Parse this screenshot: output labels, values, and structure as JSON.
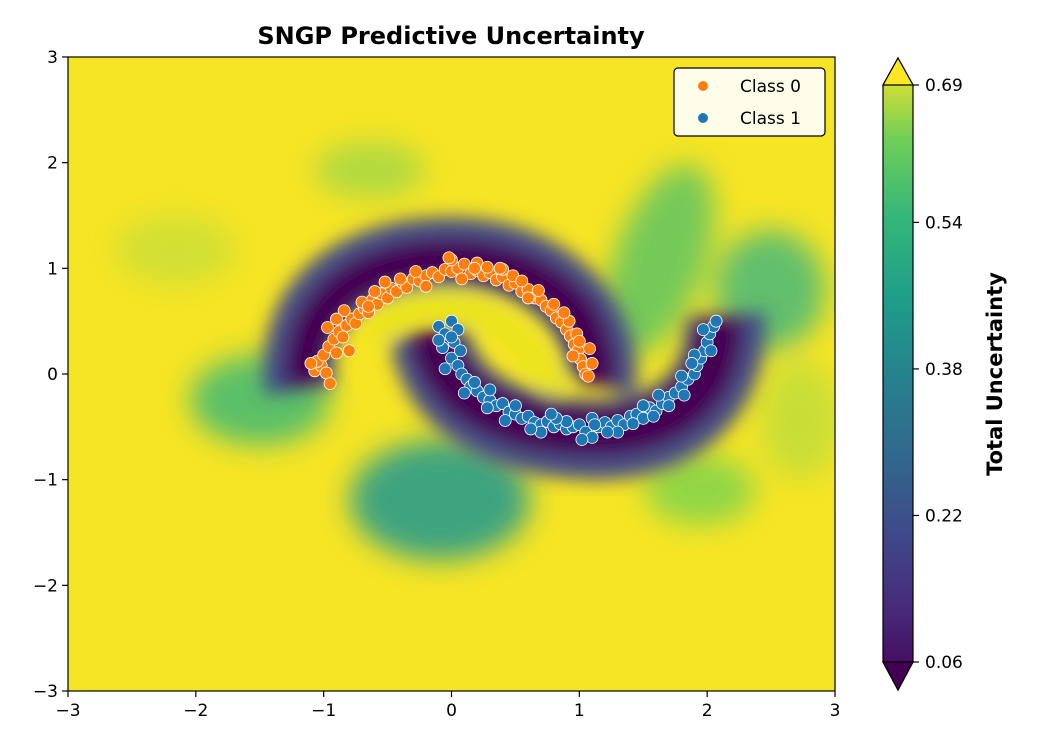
{
  "chart_data": {
    "type": "scatter",
    "title": "SNGP Predictive Uncertainty",
    "xlabel": "",
    "ylabel": "",
    "xlim": [
      -3,
      3
    ],
    "ylim": [
      -3,
      3
    ],
    "x_ticks": [
      "−3",
      "−2",
      "−1",
      "0",
      "1",
      "2",
      "3"
    ],
    "y_ticks": [
      "−3",
      "−2",
      "−1",
      "0",
      "1",
      "2",
      "3"
    ],
    "x_tick_values": [
      -3,
      -2,
      -1,
      0,
      1,
      2,
      3
    ],
    "y_tick_values": [
      -3,
      -2,
      -1,
      0,
      1,
      2,
      3
    ],
    "legend": {
      "position": "top-right",
      "entries": [
        "Class 0",
        "Class 1"
      ]
    },
    "series": [
      {
        "name": "Class 0",
        "color": "#ff7f0e",
        "points": [
          [
            -1.07,
            0.03
          ],
          [
            -1.02,
            0.08
          ],
          [
            -0.98,
            0.01
          ],
          [
            -0.95,
            -0.09
          ],
          [
            -1.05,
            0.12
          ],
          [
            -1.0,
            0.18
          ],
          [
            -0.96,
            0.26
          ],
          [
            -0.92,
            0.33
          ],
          [
            -0.88,
            0.4
          ],
          [
            -0.85,
            0.35
          ],
          [
            -0.82,
            0.46
          ],
          [
            -0.78,
            0.52
          ],
          [
            -0.75,
            0.48
          ],
          [
            -0.72,
            0.57
          ],
          [
            -0.68,
            0.62
          ],
          [
            -0.65,
            0.58
          ],
          [
            -0.62,
            0.7
          ],
          [
            -0.58,
            0.66
          ],
          [
            -0.55,
            0.76
          ],
          [
            -0.5,
            0.72
          ],
          [
            -0.47,
            0.81
          ],
          [
            -0.43,
            0.78
          ],
          [
            -0.38,
            0.86
          ],
          [
            -0.35,
            0.82
          ],
          [
            -0.3,
            0.9
          ],
          [
            -0.25,
            0.88
          ],
          [
            -0.2,
            0.93
          ],
          [
            -0.15,
            0.96
          ],
          [
            -0.1,
            0.92
          ],
          [
            -0.05,
            0.99
          ],
          [
            0.0,
            0.97
          ],
          [
            0.05,
            1.0
          ],
          [
            0.1,
            1.04
          ],
          [
            0.15,
            0.95
          ],
          [
            0.2,
            0.98
          ],
          [
            0.25,
            0.93
          ],
          [
            0.3,
            0.96
          ],
          [
            0.35,
            0.89
          ],
          [
            0.4,
            0.92
          ],
          [
            0.45,
            0.84
          ],
          [
            0.5,
            0.86
          ],
          [
            0.55,
            0.78
          ],
          [
            0.6,
            0.8
          ],
          [
            0.65,
            0.72
          ],
          [
            0.7,
            0.7
          ],
          [
            0.74,
            0.64
          ],
          [
            0.78,
            0.6
          ],
          [
            0.82,
            0.53
          ],
          [
            0.86,
            0.49
          ],
          [
            0.9,
            0.42
          ],
          [
            0.93,
            0.36
          ],
          [
            0.96,
            0.28
          ],
          [
            0.99,
            0.22
          ],
          [
            1.01,
            0.14
          ],
          [
            1.03,
            0.07
          ],
          [
            1.05,
            0.0
          ],
          [
            1.07,
            -0.02
          ],
          [
            1.1,
            0.1
          ],
          [
            1.08,
            0.24
          ],
          [
            0.98,
            0.38
          ],
          [
            -0.8,
            0.22
          ],
          [
            -0.9,
            0.2
          ],
          [
            -0.7,
            0.68
          ],
          [
            -0.6,
            0.78
          ],
          [
            -0.4,
            0.9
          ],
          [
            -0.2,
            0.83
          ],
          [
            0.0,
            1.08
          ],
          [
            0.2,
            1.05
          ],
          [
            0.4,
            0.99
          ],
          [
            0.6,
            0.72
          ],
          [
            0.8,
            0.66
          ],
          [
            0.92,
            0.5
          ],
          [
            -1.1,
            0.1
          ],
          [
            -0.97,
            0.44
          ],
          [
            -0.84,
            0.6
          ],
          [
            -0.52,
            0.87
          ],
          [
            -0.28,
            0.97
          ],
          [
            0.08,
            0.9
          ],
          [
            0.28,
            1.01
          ],
          [
            0.48,
            0.93
          ],
          [
            0.68,
            0.79
          ],
          [
            0.88,
            0.58
          ],
          [
            1.0,
            0.31
          ],
          [
            -0.02,
            1.1
          ],
          [
            -0.65,
            0.64
          ],
          [
            0.18,
            1.0
          ],
          [
            0.55,
            0.88
          ],
          [
            0.95,
            0.17
          ],
          [
            -0.9,
            0.52
          ],
          [
            0.38,
            1.0
          ]
        ]
      },
      {
        "name": "Class 1",
        "color": "#1f77b4",
        "points": [
          [
            -0.1,
            0.45
          ],
          [
            -0.05,
            0.38
          ],
          [
            0.0,
            0.5
          ],
          [
            0.02,
            0.3
          ],
          [
            0.05,
            0.42
          ],
          [
            -0.07,
            0.25
          ],
          [
            0.0,
            0.15
          ],
          [
            0.05,
            0.08
          ],
          [
            0.08,
            0.0
          ],
          [
            0.12,
            -0.05
          ],
          [
            0.15,
            -0.12
          ],
          [
            0.2,
            -0.16
          ],
          [
            0.25,
            -0.22
          ],
          [
            0.3,
            -0.25
          ],
          [
            0.35,
            -0.3
          ],
          [
            0.4,
            -0.28
          ],
          [
            0.45,
            -0.36
          ],
          [
            0.5,
            -0.38
          ],
          [
            0.55,
            -0.42
          ],
          [
            0.6,
            -0.4
          ],
          [
            0.65,
            -0.46
          ],
          [
            0.7,
            -0.48
          ],
          [
            0.75,
            -0.45
          ],
          [
            0.8,
            -0.5
          ],
          [
            0.85,
            -0.47
          ],
          [
            0.9,
            -0.52
          ],
          [
            0.95,
            -0.5
          ],
          [
            1.0,
            -0.48
          ],
          [
            1.05,
            -0.55
          ],
          [
            1.1,
            -0.6
          ],
          [
            1.15,
            -0.5
          ],
          [
            1.2,
            -0.46
          ],
          [
            1.25,
            -0.5
          ],
          [
            1.3,
            -0.44
          ],
          [
            1.35,
            -0.48
          ],
          [
            1.4,
            -0.4
          ],
          [
            1.45,
            -0.38
          ],
          [
            1.5,
            -0.42
          ],
          [
            1.55,
            -0.32
          ],
          [
            1.6,
            -0.35
          ],
          [
            1.65,
            -0.28
          ],
          [
            1.7,
            -0.22
          ],
          [
            1.75,
            -0.18
          ],
          [
            1.8,
            -0.12
          ],
          [
            1.85,
            -0.05
          ],
          [
            1.9,
            0.0
          ],
          [
            1.92,
            0.08
          ],
          [
            1.95,
            0.15
          ],
          [
            1.98,
            0.22
          ],
          [
            2.0,
            0.3
          ],
          [
            2.02,
            0.38
          ],
          [
            2.05,
            0.45
          ],
          [
            2.07,
            0.5
          ],
          [
            1.97,
            0.42
          ],
          [
            1.9,
            0.18
          ],
          [
            1.8,
            -0.02
          ],
          [
            0.1,
            -0.18
          ],
          [
            0.3,
            -0.15
          ],
          [
            0.5,
            -0.3
          ],
          [
            0.7,
            -0.55
          ],
          [
            0.9,
            -0.45
          ],
          [
            1.1,
            -0.42
          ],
          [
            1.3,
            -0.55
          ],
          [
            1.5,
            -0.3
          ],
          [
            1.7,
            -0.3
          ],
          [
            -0.05,
            0.05
          ],
          [
            0.07,
            0.22
          ],
          [
            0.18,
            -0.08
          ],
          [
            0.42,
            -0.44
          ],
          [
            0.62,
            -0.52
          ],
          [
            0.82,
            -0.42
          ],
          [
            1.02,
            -0.62
          ],
          [
            1.22,
            -0.55
          ],
          [
            1.42,
            -0.47
          ],
          [
            1.62,
            -0.2
          ],
          [
            1.82,
            -0.2
          ],
          [
            2.03,
            0.22
          ],
          [
            0.0,
            0.35
          ],
          [
            -0.1,
            0.32
          ],
          [
            0.28,
            -0.32
          ],
          [
            0.78,
            -0.38
          ],
          [
            1.12,
            -0.48
          ],
          [
            1.58,
            -0.4
          ],
          [
            1.88,
            0.1
          ]
        ]
      }
    ],
    "heatmap": {
      "label": "Total Uncertainty",
      "colormap": "viridis",
      "colorbar_ticks": [
        "0.06",
        "0.22",
        "0.38",
        "0.54",
        "0.69"
      ],
      "colorbar_tick_values": [
        0.06,
        0.22,
        0.38,
        0.54,
        0.69
      ],
      "vmin": 0.06,
      "vmax": 0.69,
      "extend": "both"
    }
  }
}
